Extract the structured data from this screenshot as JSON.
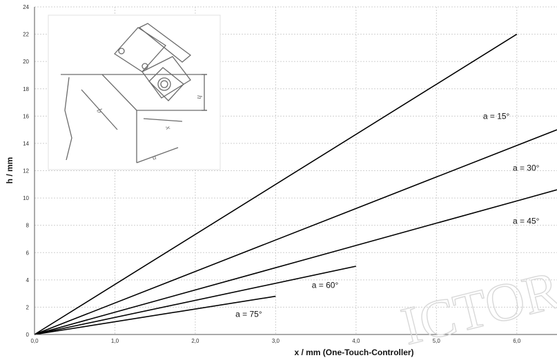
{
  "chart_data": {
    "type": "line",
    "title": "",
    "xlabel": "x / mm (One-Touch-Controller)",
    "ylabel": "h / mm",
    "xlim": [
      0,
      6.5
    ],
    "ylim": [
      0,
      24
    ],
    "x_ticks": [
      "0,0",
      "1,0",
      "2,0",
      "3,0",
      "4,0",
      "5,0",
      "6,0"
    ],
    "x_tick_values": [
      0,
      1,
      2,
      3,
      4,
      5,
      6
    ],
    "y_ticks": [
      "0",
      "2",
      "4",
      "6",
      "8",
      "10",
      "12",
      "14",
      "16",
      "18",
      "20",
      "22",
      "24"
    ],
    "y_tick_values": [
      0,
      2,
      4,
      6,
      8,
      10,
      12,
      14,
      16,
      18,
      20,
      22,
      24
    ],
    "grid": true,
    "series": [
      {
        "name": "a = 15°",
        "x": [
          0,
          6.0
        ],
        "y": [
          0,
          22.0
        ]
      },
      {
        "name": "a = 30°",
        "x": [
          0,
          6.5
        ],
        "y": [
          0,
          15.0
        ]
      },
      {
        "name": "a = 45°",
        "x": [
          0,
          6.5
        ],
        "y": [
          0,
          10.6
        ]
      },
      {
        "name": "a = 60°",
        "x": [
          0,
          4.0
        ],
        "y": [
          0,
          5.0
        ]
      },
      {
        "name": "a = 75°",
        "x": [
          0,
          3.0
        ],
        "y": [
          0,
          2.8
        ]
      }
    ],
    "inset_image": "technical drawing of controller at an angle with labels a, x, h",
    "watermark": "ICTOR"
  }
}
